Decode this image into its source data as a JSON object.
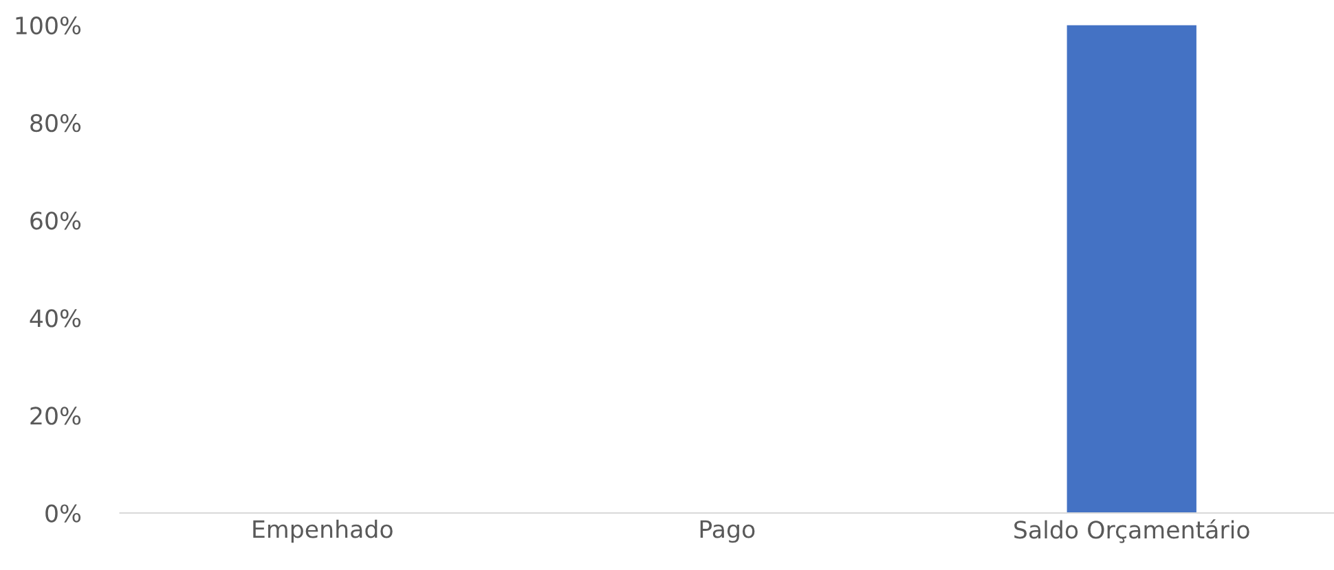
{
  "chart_data": {
    "type": "bar",
    "categories": [
      "Empenhado",
      "Pago",
      "Saldo Orçamentário"
    ],
    "values": [
      0,
      0,
      100
    ],
    "color": "#4472c4",
    "ylim": [
      0,
      100
    ],
    "yticks": [
      {
        "value": 0,
        "label": "0%"
      },
      {
        "value": 20,
        "label": "20%"
      },
      {
        "value": 40,
        "label": "40%"
      },
      {
        "value": 60,
        "label": "60%"
      },
      {
        "value": 80,
        "label": "80%"
      },
      {
        "value": 100,
        "label": "100%"
      }
    ],
    "grid": false
  }
}
